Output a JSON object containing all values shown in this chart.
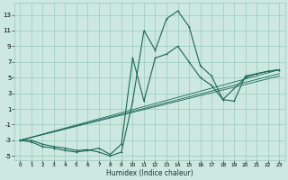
{
  "xlabel": "Humidex (Indice chaleur)",
  "xlim": [
    -0.5,
    23.5
  ],
  "ylim": [
    -5.5,
    14.5
  ],
  "xticks": [
    0,
    1,
    2,
    3,
    4,
    5,
    6,
    7,
    8,
    9,
    10,
    11,
    12,
    13,
    14,
    15,
    16,
    17,
    18,
    19,
    20,
    21,
    22,
    23
  ],
  "yticks": [
    -5,
    -3,
    -1,
    1,
    3,
    5,
    7,
    9,
    11,
    13
  ],
  "bg_color": "#cce8e0",
  "grid_color": "#99ccbb",
  "line_color": "#1a6655",
  "curve1_x": [
    0,
    1,
    2,
    3,
    4,
    5,
    6,
    7,
    8,
    9,
    10,
    11,
    12,
    13,
    14,
    15,
    16,
    17,
    18,
    19,
    20,
    21,
    22,
    23
  ],
  "curve1_y": [
    -3,
    -3,
    -3.5,
    -3.8,
    -4,
    -4.3,
    -4.2,
    -4.5,
    -5,
    -4.5,
    2,
    11,
    8.5,
    12.5,
    13.5,
    11.5,
    6.5,
    5.2,
    2.2,
    2,
    5.2,
    5.5,
    5.8,
    6
  ],
  "curve2_x": [
    0,
    1,
    2,
    3,
    4,
    5,
    6,
    7,
    8,
    9,
    10,
    11,
    12,
    13,
    14,
    15,
    16,
    17,
    18,
    20,
    21,
    22,
    23
  ],
  "curve2_y": [
    -3,
    -3.2,
    -3.8,
    -4,
    -4.3,
    -4.5,
    -4.3,
    -4,
    -4.8,
    -3.5,
    7.5,
    2,
    7.5,
    8,
    9,
    7,
    5,
    4,
    2.2,
    5,
    5.5,
    5.8,
    6
  ],
  "line1_x": [
    0,
    23
  ],
  "line1_y": [
    -3,
    6.0
  ],
  "line2_x": [
    0,
    23
  ],
  "line2_y": [
    -3,
    5.5
  ],
  "line3_x": [
    0,
    23
  ],
  "line3_y": [
    -3,
    5.2
  ],
  "linewidth_curve": 0.8,
  "linewidth_straight": 0.6,
  "markersize": 1.8,
  "xlabel_fontsize": 5.5,
  "tick_fontsize_x": 4.2,
  "tick_fontsize_y": 5.0
}
